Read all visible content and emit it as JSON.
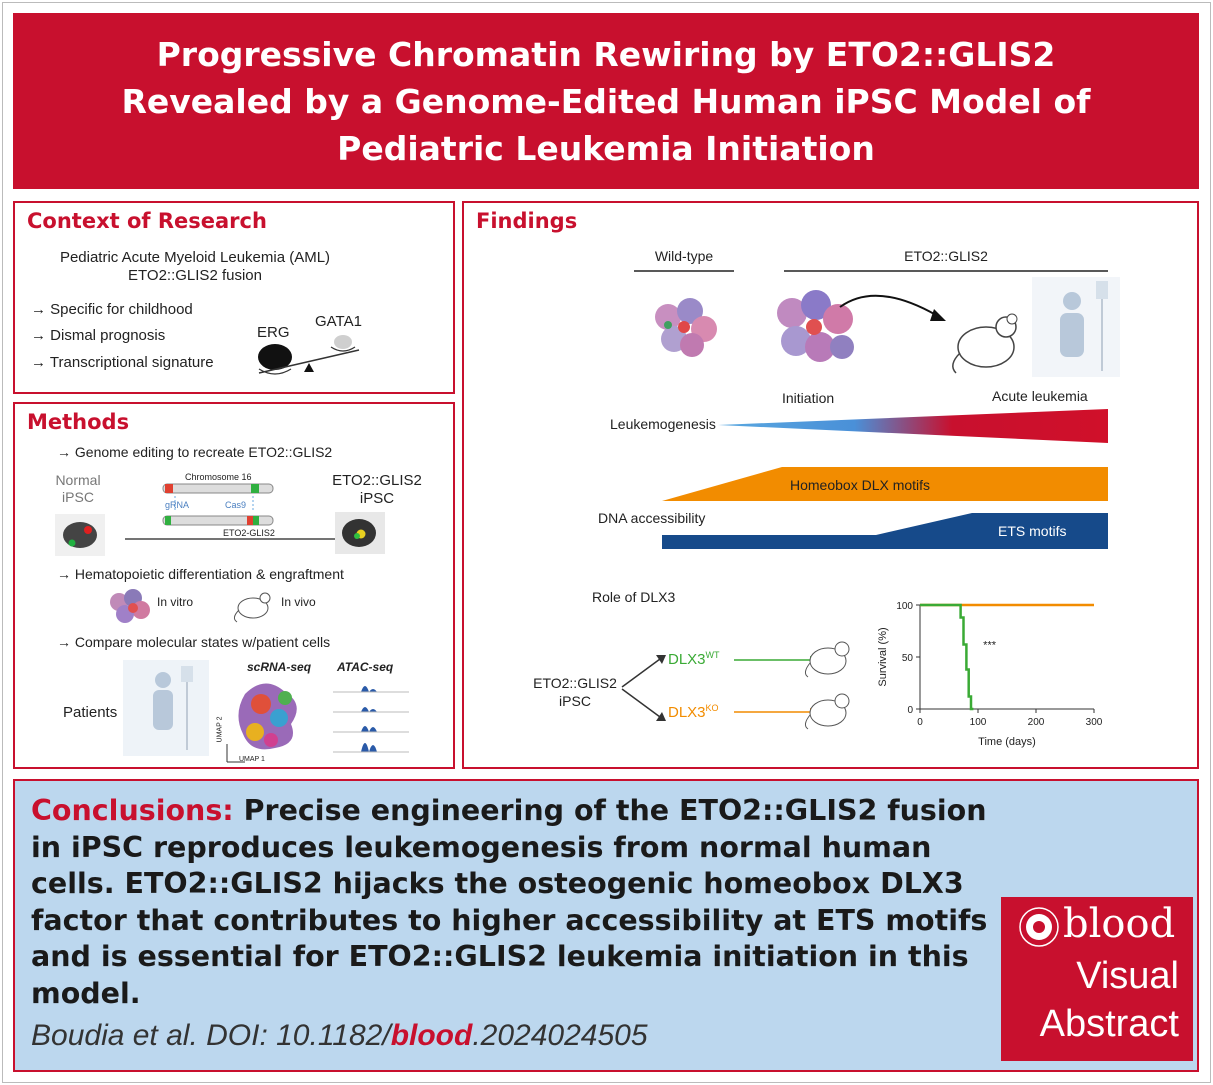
{
  "title": "Progressive Chromatin Rewiring by ETO2::GLIS2 Revealed by a Genome-Edited Human iPSC Model of Pediatric Leukemia Initiation",
  "context": {
    "heading": "Context of Research",
    "line1": "Pediatric Acute Myeloid Leukemia (AML)",
    "line2": "ETO2::GLIS2 fusion",
    "bullets": [
      "Specific for childhood",
      "Dismal prognosis",
      "Transcriptional signature"
    ],
    "erg": "ERG",
    "gata1": "GATA1"
  },
  "methods": {
    "heading": "Methods",
    "step1": "Genome editing to recreate ETO2::GLIS2",
    "normal_label1": "Normal",
    "normal_label2": "iPSC",
    "chromosome": "Chromosome 16",
    "cas9": "Cas9",
    "grna": "gRNA",
    "fusion_small": "ETO2-GLIS2",
    "edited_label1": "ETO2::GLIS2",
    "edited_label2": "iPSC",
    "step2": "Hematopoietic differentiation & engraftment",
    "invitro": "In vitro",
    "invivo": "In vivo",
    "step3": "Compare molecular states w/patient cells",
    "patients": "Patients",
    "scrna": "scRNA-seq",
    "atac": "ATAC-seq",
    "umap1": "UMAP 1",
    "umap2": "UMAP 2"
  },
  "findings": {
    "heading": "Findings",
    "wildtype": "Wild-type",
    "fusion": "ETO2::GLIS2",
    "initiation": "Initiation",
    "acute": "Acute leukemia",
    "leukemogenesis": "Leukemogenesis",
    "homeobox": "Homeobox DLX motifs",
    "dna_access": "DNA accessibility",
    "ets": "ETS motifs",
    "role": "Role of DLX3",
    "ipsc1": "ETO2::GLIS2",
    "ipsc2": "iPSC",
    "dlx3": "DLX3",
    "wt_sup": "WT",
    "ko_sup": "KO",
    "stars": "***",
    "colors": {
      "wt": "#3aaa35",
      "ko": "#f28c00",
      "ets": "#164a8a",
      "homeobox": "#f28c00",
      "red": "#c8102e"
    }
  },
  "chart_data": {
    "type": "line",
    "title": "",
    "xlabel": "Time (days)",
    "ylabel": "Survival (%)",
    "xlim": [
      0,
      300
    ],
    "ylim": [
      0,
      100
    ],
    "xticks": [
      0,
      100,
      200,
      300
    ],
    "yticks": [
      0,
      50,
      100
    ],
    "series": [
      {
        "name": "DLX3KO",
        "color": "#f28c00",
        "steps": [
          [
            0,
            100
          ],
          [
            300,
            100
          ]
        ]
      },
      {
        "name": "DLX3WT",
        "color": "#3aaa35",
        "steps": [
          [
            0,
            100
          ],
          [
            70,
            100
          ],
          [
            70,
            88
          ],
          [
            75,
            88
          ],
          [
            75,
            62
          ],
          [
            80,
            62
          ],
          [
            80,
            38
          ],
          [
            84,
            38
          ],
          [
            84,
            12
          ],
          [
            88,
            12
          ],
          [
            88,
            0
          ],
          [
            92,
            0
          ]
        ]
      }
    ]
  },
  "conclusions": {
    "label": "Conclusions:",
    "text": "Precise engineering of the ETO2::GLIS2 fusion in iPSC reproduces leukemogenesis from normal human cells. ETO2::GLIS2 hijacks the osteogenic homeobox DLX3 factor that contributes to higher accessibility at ETS motifs and is essential for ETO2::GLIS2 leukemia initiation in this model.",
    "cite_pre": "Boudia et al. DOI: 10.1182/",
    "cite_blood": "blood",
    "cite_post": ".2024024505"
  },
  "badge": {
    "word": "blood",
    "v1": "Visual",
    "v2": "Abstract"
  }
}
